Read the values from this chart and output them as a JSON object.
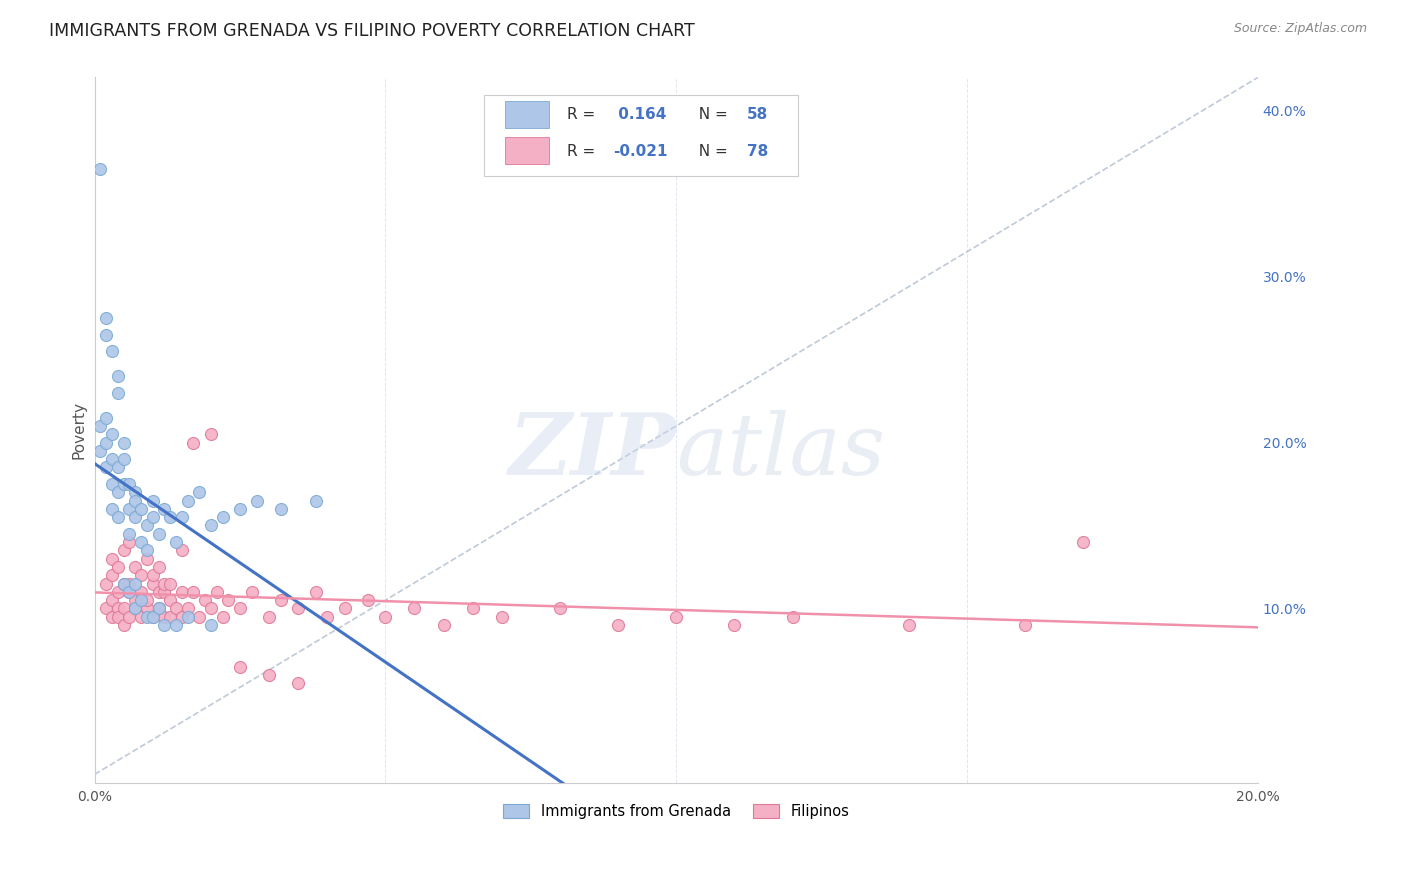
{
  "title": "IMMIGRANTS FROM GRENADA VS FILIPINO POVERTY CORRELATION CHART",
  "source": "Source: ZipAtlas.com",
  "ylabel": "Poverty",
  "xlim": [
    0.0,
    0.2
  ],
  "ylim": [
    -0.005,
    0.42
  ],
  "grenada_color": "#aec6e8",
  "grenada_edge": "#7aaad4",
  "filipino_color": "#f4b0c4",
  "filipino_edge": "#e07898",
  "line_grenada_color": "#4472c4",
  "line_filipino_color": "#f090aa",
  "dashed_line_color": "#b8c4d4",
  "R_grenada": 0.164,
  "N_grenada": 58,
  "R_filipino": -0.021,
  "N_filipino": 78,
  "watermark": "ZIPatlas",
  "background_color": "#ffffff",
  "grid_color": "#d8e0ec",
  "grenada_x": [
    0.001,
    0.001,
    0.002,
    0.002,
    0.002,
    0.003,
    0.003,
    0.003,
    0.003,
    0.004,
    0.004,
    0.004,
    0.005,
    0.005,
    0.005,
    0.006,
    0.006,
    0.006,
    0.007,
    0.007,
    0.007,
    0.008,
    0.008,
    0.009,
    0.009,
    0.01,
    0.01,
    0.011,
    0.012,
    0.013,
    0.014,
    0.015,
    0.016,
    0.018,
    0.02,
    0.022,
    0.025,
    0.028,
    0.032,
    0.038,
    0.001,
    0.002,
    0.002,
    0.003,
    0.004,
    0.004,
    0.005,
    0.006,
    0.007,
    0.007,
    0.008,
    0.009,
    0.01,
    0.011,
    0.012,
    0.014,
    0.016,
    0.02
  ],
  "grenada_y": [
    0.195,
    0.21,
    0.185,
    0.2,
    0.215,
    0.175,
    0.19,
    0.205,
    0.16,
    0.185,
    0.17,
    0.155,
    0.2,
    0.175,
    0.19,
    0.16,
    0.175,
    0.145,
    0.17,
    0.155,
    0.165,
    0.16,
    0.14,
    0.15,
    0.135,
    0.165,
    0.155,
    0.145,
    0.16,
    0.155,
    0.14,
    0.155,
    0.165,
    0.17,
    0.15,
    0.155,
    0.16,
    0.165,
    0.16,
    0.165,
    0.365,
    0.265,
    0.275,
    0.255,
    0.24,
    0.23,
    0.115,
    0.11,
    0.115,
    0.1,
    0.105,
    0.095,
    0.095,
    0.1,
    0.09,
    0.09,
    0.095,
    0.09
  ],
  "filipino_x": [
    0.002,
    0.002,
    0.003,
    0.003,
    0.003,
    0.004,
    0.004,
    0.004,
    0.005,
    0.005,
    0.005,
    0.006,
    0.006,
    0.006,
    0.007,
    0.007,
    0.008,
    0.008,
    0.009,
    0.009,
    0.01,
    0.01,
    0.011,
    0.011,
    0.012,
    0.012,
    0.013,
    0.013,
    0.014,
    0.015,
    0.015,
    0.016,
    0.017,
    0.018,
    0.019,
    0.02,
    0.021,
    0.022,
    0.023,
    0.025,
    0.027,
    0.03,
    0.032,
    0.035,
    0.038,
    0.04,
    0.043,
    0.047,
    0.05,
    0.055,
    0.06,
    0.065,
    0.07,
    0.08,
    0.09,
    0.1,
    0.11,
    0.12,
    0.14,
    0.16,
    0.003,
    0.004,
    0.005,
    0.006,
    0.007,
    0.008,
    0.009,
    0.01,
    0.011,
    0.012,
    0.013,
    0.015,
    0.017,
    0.02,
    0.025,
    0.03,
    0.035,
    0.17
  ],
  "filipino_y": [
    0.115,
    0.1,
    0.12,
    0.105,
    0.095,
    0.11,
    0.1,
    0.095,
    0.115,
    0.1,
    0.09,
    0.11,
    0.095,
    0.115,
    0.1,
    0.105,
    0.095,
    0.11,
    0.1,
    0.105,
    0.115,
    0.095,
    0.11,
    0.1,
    0.095,
    0.11,
    0.105,
    0.095,
    0.1,
    0.11,
    0.095,
    0.1,
    0.11,
    0.095,
    0.105,
    0.1,
    0.11,
    0.095,
    0.105,
    0.1,
    0.11,
    0.095,
    0.105,
    0.1,
    0.11,
    0.095,
    0.1,
    0.105,
    0.095,
    0.1,
    0.09,
    0.1,
    0.095,
    0.1,
    0.09,
    0.095,
    0.09,
    0.095,
    0.09,
    0.09,
    0.13,
    0.125,
    0.135,
    0.14,
    0.125,
    0.12,
    0.13,
    0.12,
    0.125,
    0.115,
    0.115,
    0.135,
    0.2,
    0.205,
    0.065,
    0.06,
    0.055,
    0.14
  ],
  "legend_items": [
    {
      "label": "R =  0.164   N = 58",
      "color": "#aec6e8",
      "edge": "#7aaad4"
    },
    {
      "label": "R = -0.021   N = 78",
      "color": "#f4b0c4",
      "edge": "#e07898"
    }
  ],
  "bottom_legend": [
    {
      "label": "Immigrants from Grenada",
      "color": "#aec6e8",
      "edge": "#7aaad4"
    },
    {
      "label": "Filipinos",
      "color": "#f4b0c4",
      "edge": "#e07898"
    }
  ]
}
